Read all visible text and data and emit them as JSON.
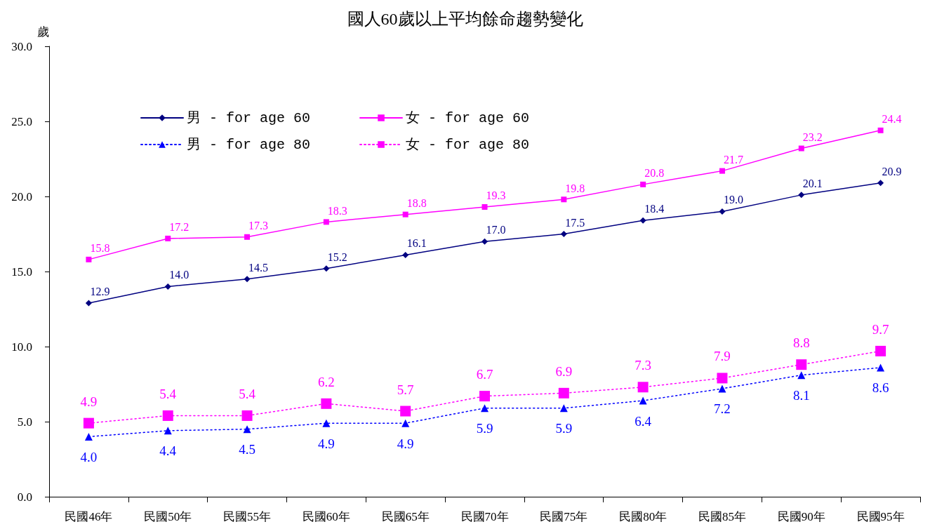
{
  "chart_data": {
    "type": "line",
    "title": "國人60歲以上平均餘命趨勢變化",
    "ylabel": "歲",
    "categories": [
      "民國46年",
      "民國50年",
      "民國55年",
      "民國60年",
      "民國65年",
      "民國70年",
      "民國75年",
      "民國80年",
      "民國85年",
      "民國90年",
      "民國95年"
    ],
    "series": [
      {
        "name": "男 - for age 60",
        "color": "#000080",
        "marker": "diamond",
        "line_style": "solid",
        "values": [
          12.9,
          14.0,
          14.5,
          15.2,
          16.1,
          17.0,
          17.5,
          18.4,
          19.0,
          20.1,
          20.9
        ],
        "value_labels": [
          "12.9",
          "14.0",
          "14.5",
          "15.2",
          "16.1",
          "17.0",
          "17.5",
          "18.4",
          "19.0",
          "20.1",
          "20.9"
        ]
      },
      {
        "name": "女 - for age 60",
        "color": "#ff00ff",
        "marker": "square",
        "line_style": "solid",
        "values": [
          15.8,
          17.2,
          17.3,
          18.3,
          18.8,
          19.3,
          19.8,
          20.8,
          21.7,
          23.2,
          24.4
        ],
        "value_labels": [
          "15.8",
          "17.2",
          "17.3",
          "18.3",
          "18.8",
          "19.3",
          "19.8",
          "20.8",
          "21.7",
          "23.2",
          "24.4"
        ]
      },
      {
        "name": "男 - for age 80",
        "color": "#0000ff",
        "marker": "triangle",
        "line_style": "dotted",
        "values": [
          4.0,
          4.4,
          4.5,
          4.9,
          4.9,
          5.9,
          5.9,
          6.4,
          7.2,
          8.1,
          8.6
        ],
        "value_labels": [
          "4.0",
          "4.4",
          "4.5",
          "4.9",
          "4.9",
          "5.9",
          "5.9",
          "6.4",
          "7.2",
          "8.1",
          "8.6"
        ]
      },
      {
        "name": "女 - for age 80",
        "color": "#ff00ff",
        "marker": "square",
        "line_style": "dotted",
        "values": [
          4.9,
          5.4,
          5.4,
          6.2,
          5.7,
          6.7,
          6.9,
          7.3,
          7.9,
          8.8,
          9.7
        ],
        "value_labels": [
          "4.9",
          "5.4",
          "5.4",
          "6.2",
          "5.7",
          "6.7",
          "6.9",
          "7.3",
          "7.9",
          "8.8",
          "9.7"
        ]
      }
    ],
    "ylim": [
      0,
      30
    ],
    "yticks": [
      {
        "value": 0,
        "label": "0.0"
      },
      {
        "value": 5,
        "label": "5.0"
      },
      {
        "value": 10,
        "label": "10.0"
      },
      {
        "value": 15,
        "label": "15.0"
      },
      {
        "value": 20,
        "label": "20.0"
      },
      {
        "value": 25,
        "label": "25.0"
      },
      {
        "value": 30,
        "label": "30.0"
      }
    ],
    "grid": false,
    "legend": "top left"
  }
}
